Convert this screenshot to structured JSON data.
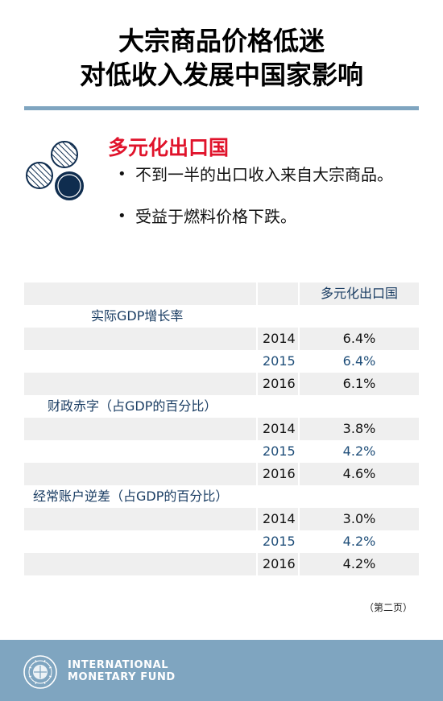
{
  "title": {
    "line1": "大宗商品价格低迷",
    "line2": "对低收入发展中国家影响"
  },
  "section": {
    "heading": "多元化出口国",
    "bullets": [
      "不到一半的出口收入来自大宗商品。",
      "受益于燃料价格下跌。"
    ]
  },
  "table": {
    "column_header": "多元化出口国",
    "groups": [
      {
        "label": "实际GDP增长率",
        "rows": [
          {
            "year": "2014",
            "value": "6.4%"
          },
          {
            "year": "2015",
            "value": "6.4%"
          },
          {
            "year": "2016",
            "value": "6.1%"
          }
        ]
      },
      {
        "label": "财政赤字（占GDP的百分比）",
        "rows": [
          {
            "year": "2014",
            "value": "3.8%"
          },
          {
            "year": "2015",
            "value": "4.2%"
          },
          {
            "year": "2016",
            "value": "4.6%"
          }
        ]
      },
      {
        "label": "经常账户逆差（占GDP的百分比）",
        "rows": [
          {
            "year": "2014",
            "value": "3.0%"
          },
          {
            "year": "2015",
            "value": "4.2%"
          },
          {
            "year": "2016",
            "value": "4.2%"
          }
        ]
      }
    ]
  },
  "page_note": "（第二页）",
  "footer": {
    "logo_line1": "INTERNATIONAL",
    "logo_line2": "MONETARY FUND",
    "seal_icon": "imf-seal-icon"
  },
  "colors": {
    "accent_red": "#e0132b",
    "rule_blue": "#7fa5c0",
    "dark_navy": "#0f2d4f",
    "text_blue": "#1f4e79"
  }
}
